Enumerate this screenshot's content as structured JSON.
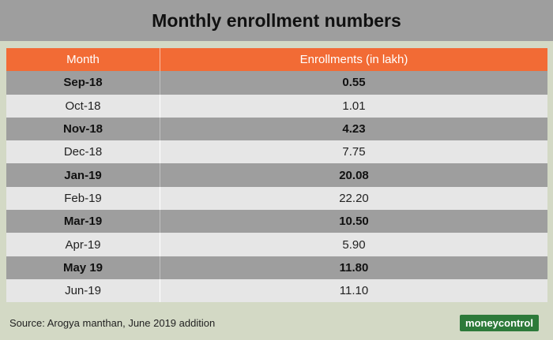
{
  "header": {
    "title": "Monthly enrollment numbers"
  },
  "chart_data": {
    "type": "table",
    "title": "Monthly enrollment numbers",
    "columns": [
      "Month",
      "Enrollments (in lakh)"
    ],
    "rows": [
      {
        "month": "Sep-18",
        "value": "0.55"
      },
      {
        "month": "Oct-18",
        "value": "1.01"
      },
      {
        "month": "Nov-18",
        "value": "4.23"
      },
      {
        "month": "Dec-18",
        "value": "7.75"
      },
      {
        "month": "Jan-19",
        "value": "20.08"
      },
      {
        "month": "Feb-19",
        "value": "22.20"
      },
      {
        "month": "Mar-19",
        "value": "10.50"
      },
      {
        "month": "Apr-19",
        "value": "5.90"
      },
      {
        "month": "May 19",
        "value": "11.80"
      },
      {
        "month": "Jun-19",
        "value": "11.10"
      }
    ],
    "colors": {
      "header": "#f26b35",
      "dark_row": "#9e9e9e",
      "light_row": "#e6e6e6",
      "background": "#d3d9c5"
    }
  },
  "footer": {
    "source": "Source: Arogya manthan, June 2019 addition",
    "logo": "moneycontrol"
  }
}
